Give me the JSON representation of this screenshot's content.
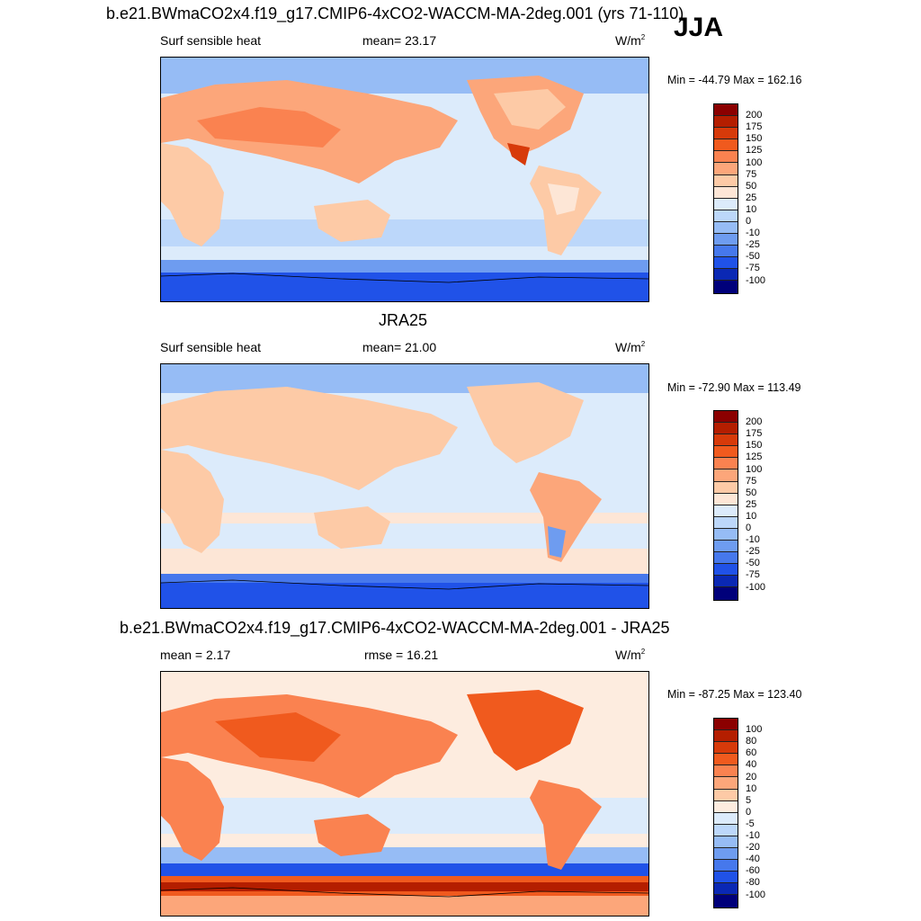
{
  "season": "JJA",
  "units_base": "W/m",
  "units_exp": "2",
  "panels": [
    {
      "title": "b.e21.BWmaCO2x4.f19_g17.CMIP6-4xCO2-WACCM-MA-2deg.001 (yrs 71-110)",
      "left_label": "Surf sensible heat",
      "mid_label": "mean=  23.17",
      "minmax": "Min = -44.79 Max = 162.16",
      "levels": [
        "200",
        "175",
        "150",
        "125",
        "100",
        "75",
        "50",
        "25",
        "10",
        "0",
        "-10",
        "-25",
        "-50",
        "-75",
        "-100"
      ],
      "colors": [
        "#8b0000",
        "#b41e00",
        "#d73a0a",
        "#f05a1e",
        "#fa8250",
        "#fca67a",
        "#fdcaa6",
        "#fde6d6",
        "#dcebfb",
        "#bcd7fa",
        "#96bcf5",
        "#6e9cf0",
        "#4678ec",
        "#2052e8",
        "#0a28b4",
        "#00007a"
      ]
    },
    {
      "title": "JRA25",
      "left_label": "Surf sensible heat",
      "mid_label": "mean=  21.00",
      "minmax": "Min = -72.90 Max = 113.49",
      "levels": [
        "200",
        "175",
        "150",
        "125",
        "100",
        "75",
        "50",
        "25",
        "10",
        "0",
        "-10",
        "-25",
        "-50",
        "-75",
        "-100"
      ],
      "colors": [
        "#8b0000",
        "#b41e00",
        "#d73a0a",
        "#f05a1e",
        "#fa8250",
        "#fca67a",
        "#fdcaa6",
        "#fde6d6",
        "#dcebfb",
        "#bcd7fa",
        "#96bcf5",
        "#6e9cf0",
        "#4678ec",
        "#2052e8",
        "#0a28b4",
        "#00007a"
      ]
    },
    {
      "title": "b.e21.BWmaCO2x4.f19_g17.CMIP6-4xCO2-WACCM-MA-2deg.001 - JRA25",
      "left_label": "mean =   2.17",
      "mid_label": "rmse =  16.21",
      "minmax": "Min = -87.25 Max = 123.40",
      "levels": [
        "100",
        "80",
        "60",
        "40",
        "20",
        "10",
        "5",
        "0",
        "-5",
        "-10",
        "-20",
        "-40",
        "-60",
        "-80",
        "-100"
      ],
      "colors": [
        "#8b0000",
        "#b41e00",
        "#d73a0a",
        "#f05a1e",
        "#fa8250",
        "#fca67a",
        "#fdcaa6",
        "#fdecdf",
        "#dcebfb",
        "#bcd7fa",
        "#96bcf5",
        "#6e9cf0",
        "#4678ec",
        "#2052e8",
        "#0a28b4",
        "#00007a"
      ]
    }
  ]
}
